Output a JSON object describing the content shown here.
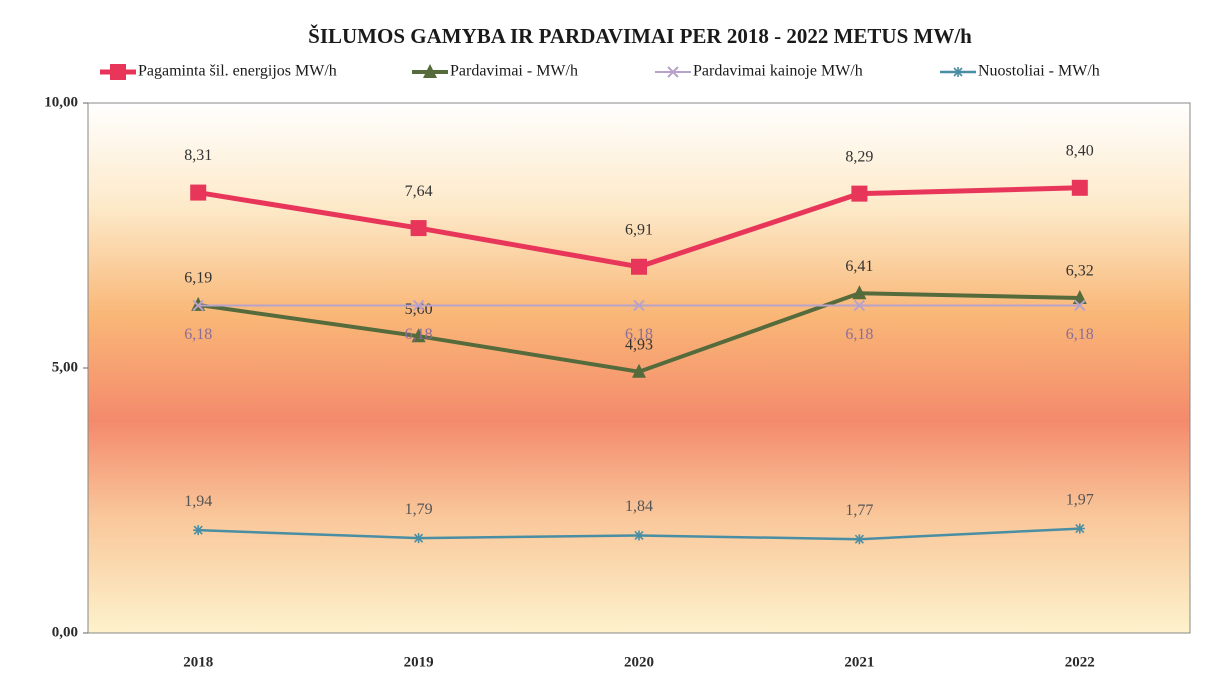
{
  "chart_data": {
    "type": "line",
    "title": "ŠILUMOS GAMYBA IR PARDAVIMAI PER  2018 - 2022  METUS MW/h",
    "categories": [
      "2018",
      "2019",
      "2020",
      "2021",
      "2022"
    ],
    "series": [
      {
        "name": "Pagaminta šil. energijos MW/h",
        "color": "#e8365a",
        "marker": "square",
        "values": [
          8.31,
          7.64,
          6.91,
          8.29,
          8.4
        ],
        "value_labels": [
          "8,31",
          "7,64",
          "6,91",
          "8,29",
          "8,40"
        ]
      },
      {
        "name": "Pardavimai - MW/h",
        "color": "#556b3c",
        "marker": "triangle",
        "values": [
          6.19,
          5.6,
          4.93,
          6.41,
          6.32
        ],
        "value_labels": [
          "6,19",
          "5,60",
          "4,93",
          "6,41",
          "6,32"
        ]
      },
      {
        "name": "Pardavimai kainoje MW/h",
        "color": "#b8a2c9",
        "marker": "x",
        "values": [
          6.18,
          6.18,
          6.18,
          6.18,
          6.18
        ],
        "value_labels": [
          "6,18",
          "6,18",
          "6,18",
          "6,18",
          "6,18"
        ]
      },
      {
        "name": "Nuostoliai - MW/h",
        "color": "#4a8ea3",
        "marker": "star",
        "values": [
          1.94,
          1.79,
          1.84,
          1.77,
          1.97
        ],
        "value_labels": [
          "1,94",
          "1,79",
          "1,84",
          "1,77",
          "1,97"
        ]
      }
    ],
    "ylim": [
      0,
      10
    ],
    "yticks": [
      {
        "value": 0,
        "label": "0,00"
      },
      {
        "value": 5,
        "label": "5,00"
      },
      {
        "value": 10,
        "label": "10,00"
      }
    ],
    "legend": "top"
  }
}
